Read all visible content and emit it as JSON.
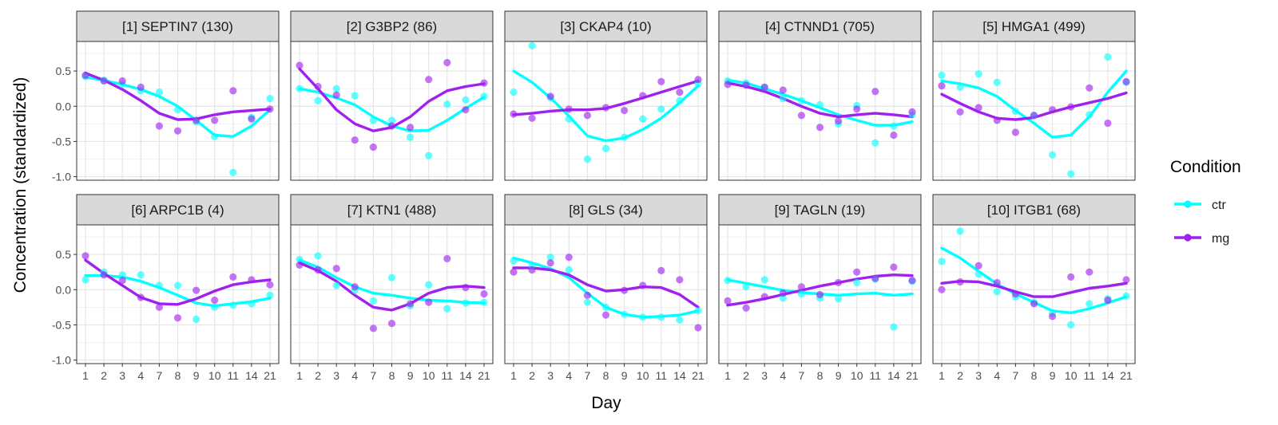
{
  "chart_data": {
    "type": "line",
    "xlabel": "Day",
    "ylabel": "Concentration (standardized)",
    "x_ticks": [
      "1",
      "2",
      "3",
      "4",
      "7",
      "8",
      "9",
      "10",
      "11",
      "14",
      "21"
    ],
    "y_ticks": [
      0.5,
      0.0,
      -0.5,
      -1.0
    ],
    "y_tick_labels": [
      "0.5",
      "0.0",
      "-0.5",
      "-1.0"
    ],
    "ylim": [
      -1.05,
      0.92
    ],
    "grid": true,
    "legend": {
      "title": "Condition",
      "position": "right",
      "entries": [
        {
          "name": "ctr",
          "color": "#00ffff"
        },
        {
          "name": "mg",
          "color": "#a020f0"
        }
      ]
    },
    "panels": [
      {
        "title": "[1] SEPTIN7 (130)",
        "series": [
          {
            "name": "ctr",
            "line": [
              0.41,
              0.37,
              0.31,
              0.24,
              0.14,
              0.0,
              -0.2,
              -0.41,
              -0.43,
              -0.28,
              -0.05
            ],
            "points": [
              0.42,
              0.37,
              0.31,
              0.22,
              0.2,
              -0.05,
              -0.22,
              -0.43,
              -0.94,
              -0.16,
              0.11
            ]
          },
          {
            "name": "mg",
            "line": [
              0.47,
              0.37,
              0.24,
              0.08,
              -0.1,
              -0.19,
              -0.18,
              -0.12,
              -0.08,
              -0.06,
              -0.04
            ],
            "points": [
              0.44,
              0.36,
              0.36,
              0.27,
              -0.28,
              -0.35,
              -0.2,
              -0.2,
              0.22,
              -0.18,
              -0.04
            ]
          }
        ]
      },
      {
        "title": "[2] G3BP2 (86)",
        "series": [
          {
            "name": "ctr",
            "line": [
              0.25,
              0.2,
              0.12,
              0.02,
              -0.15,
              -0.28,
              -0.35,
              -0.34,
              -0.2,
              -0.03,
              0.13
            ],
            "points": [
              0.25,
              0.08,
              0.25,
              0.15,
              -0.2,
              -0.2,
              -0.44,
              -0.7,
              0.03,
              0.09,
              0.14
            ]
          },
          {
            "name": "mg",
            "line": [
              0.53,
              0.25,
              -0.05,
              -0.25,
              -0.35,
              -0.3,
              -0.15,
              0.07,
              0.22,
              0.28,
              0.32
            ],
            "points": [
              0.58,
              0.28,
              0.16,
              -0.48,
              -0.58,
              -0.28,
              -0.3,
              0.38,
              0.62,
              -0.05,
              0.33
            ]
          }
        ]
      },
      {
        "title": "[3] CKAP4 (10)",
        "series": [
          {
            "name": "ctr",
            "line": [
              0.5,
              0.34,
              0.12,
              -0.14,
              -0.42,
              -0.49,
              -0.45,
              -0.33,
              -0.17,
              0.05,
              0.29
            ],
            "points": [
              0.2,
              0.86,
              0.12,
              -0.18,
              -0.75,
              -0.6,
              -0.44,
              -0.18,
              -0.04,
              0.08,
              0.32
            ]
          },
          {
            "name": "mg",
            "line": [
              -0.12,
              -0.1,
              -0.07,
              -0.05,
              -0.05,
              -0.03,
              0.04,
              0.12,
              0.2,
              0.28,
              0.36
            ],
            "points": [
              -0.11,
              -0.17,
              0.14,
              -0.04,
              -0.13,
              -0.02,
              -0.06,
              0.15,
              0.35,
              0.2,
              0.38
            ]
          }
        ]
      },
      {
        "title": "[4] CTNND1 (705)",
        "series": [
          {
            "name": "ctr",
            "line": [
              0.37,
              0.33,
              0.25,
              0.17,
              0.08,
              -0.02,
              -0.12,
              -0.2,
              -0.27,
              -0.27,
              -0.22
            ],
            "points": [
              0.36,
              0.33,
              0.27,
              0.11,
              0.08,
              0.02,
              -0.25,
              0.01,
              -0.52,
              -0.28,
              -0.12
            ]
          },
          {
            "name": "mg",
            "line": [
              0.33,
              0.28,
              0.21,
              0.11,
              0.0,
              -0.1,
              -0.15,
              -0.12,
              -0.1,
              -0.12,
              -0.15
            ],
            "points": [
              0.31,
              0.3,
              0.27,
              0.23,
              -0.13,
              -0.3,
              -0.21,
              -0.04,
              0.21,
              -0.41,
              -0.08
            ]
          }
        ]
      },
      {
        "title": "[5] HMGA1 (499)",
        "series": [
          {
            "name": "ctr",
            "line": [
              0.36,
              0.32,
              0.26,
              0.14,
              -0.06,
              -0.24,
              -0.44,
              -0.41,
              -0.15,
              0.2,
              0.5
            ],
            "points": [
              0.44,
              0.27,
              0.46,
              0.34,
              -0.07,
              -0.13,
              -0.69,
              -0.96,
              -0.12,
              0.7,
              0.34
            ]
          },
          {
            "name": "mg",
            "line": [
              0.17,
              0.04,
              -0.08,
              -0.17,
              -0.19,
              -0.16,
              -0.08,
              -0.01,
              0.05,
              0.11,
              0.19
            ],
            "points": [
              0.29,
              -0.08,
              -0.02,
              -0.2,
              -0.37,
              -0.13,
              -0.05,
              -0.01,
              0.26,
              -0.24,
              0.35
            ]
          }
        ]
      },
      {
        "title": "[6] ARPC1B (4)",
        "series": [
          {
            "name": "ctr",
            "line": [
              0.2,
              0.2,
              0.18,
              0.12,
              0.03,
              -0.08,
              -0.19,
              -0.23,
              -0.2,
              -0.17,
              -0.12
            ],
            "points": [
              0.14,
              0.25,
              0.21,
              0.21,
              0.06,
              0.06,
              -0.42,
              -0.25,
              -0.22,
              -0.2,
              -0.08
            ]
          },
          {
            "name": "mg",
            "line": [
              0.42,
              0.23,
              0.06,
              -0.11,
              -0.2,
              -0.21,
              -0.13,
              -0.02,
              0.07,
              0.11,
              0.14
            ],
            "points": [
              0.48,
              0.21,
              0.13,
              -0.11,
              -0.25,
              -0.4,
              -0.01,
              -0.15,
              0.18,
              0.14,
              0.07
            ]
          }
        ]
      },
      {
        "title": "[7] KTN1 (488)",
        "series": [
          {
            "name": "ctr",
            "line": [
              0.42,
              0.32,
              0.17,
              0.04,
              -0.05,
              -0.08,
              -0.12,
              -0.15,
              -0.16,
              -0.18,
              -0.19
            ],
            "points": [
              0.43,
              0.48,
              0.06,
              -0.01,
              -0.16,
              0.17,
              -0.23,
              0.07,
              -0.27,
              -0.19,
              -0.18
            ]
          },
          {
            "name": "mg",
            "line": [
              0.38,
              0.27,
              0.12,
              -0.08,
              -0.25,
              -0.29,
              -0.2,
              -0.05,
              0.03,
              0.05,
              0.03
            ],
            "points": [
              0.35,
              0.28,
              0.3,
              0.04,
              -0.55,
              -0.48,
              -0.2,
              -0.18,
              0.44,
              0.03,
              -0.06
            ]
          }
        ]
      },
      {
        "title": "[8] GLS (34)",
        "series": [
          {
            "name": "ctr",
            "line": [
              0.45,
              0.38,
              0.3,
              0.17,
              -0.05,
              -0.25,
              -0.35,
              -0.39,
              -0.38,
              -0.36,
              -0.3
            ],
            "points": [
              0.41,
              0.34,
              0.46,
              0.28,
              -0.18,
              -0.25,
              -0.35,
              -0.39,
              -0.39,
              -0.43,
              -0.3
            ]
          },
          {
            "name": "mg",
            "line": [
              0.31,
              0.31,
              0.28,
              0.21,
              0.07,
              -0.02,
              0.0,
              0.04,
              0.03,
              -0.07,
              -0.25
            ],
            "points": [
              0.25,
              0.28,
              0.38,
              0.46,
              -0.08,
              -0.36,
              -0.01,
              0.06,
              0.27,
              0.14,
              -0.54
            ]
          }
        ]
      },
      {
        "title": "[9] TAGLN (19)",
        "series": [
          {
            "name": "ctr",
            "line": [
              0.14,
              0.09,
              0.04,
              -0.01,
              -0.04,
              -0.06,
              -0.08,
              -0.06,
              -0.05,
              -0.08,
              -0.06
            ],
            "points": [
              0.13,
              0.04,
              0.14,
              -0.12,
              -0.06,
              -0.12,
              -0.13,
              0.1,
              0.15,
              -0.53,
              0.12
            ]
          },
          {
            "name": "mg",
            "line": [
              -0.22,
              -0.18,
              -0.13,
              -0.07,
              -0.01,
              0.05,
              0.1,
              0.15,
              0.19,
              0.21,
              0.2
            ],
            "points": [
              -0.16,
              -0.26,
              -0.1,
              -0.05,
              0.04,
              -0.07,
              0.1,
              0.25,
              0.16,
              0.32,
              0.13
            ]
          }
        ]
      },
      {
        "title": "[10] ITGB1 (68)",
        "series": [
          {
            "name": "ctr",
            "line": [
              0.59,
              0.45,
              0.26,
              0.08,
              -0.06,
              -0.18,
              -0.3,
              -0.33,
              -0.27,
              -0.19,
              -0.1
            ],
            "points": [
              0.4,
              0.83,
              0.22,
              -0.03,
              -0.1,
              -0.18,
              -0.33,
              -0.5,
              -0.2,
              -0.13,
              -0.09
            ]
          },
          {
            "name": "mg",
            "line": [
              0.09,
              0.12,
              0.11,
              0.05,
              -0.03,
              -0.1,
              -0.1,
              -0.04,
              0.02,
              0.05,
              0.09
            ],
            "points": [
              0.0,
              0.11,
              0.34,
              0.1,
              -0.06,
              -0.2,
              -0.38,
              0.18,
              0.25,
              -0.15,
              0.14
            ]
          }
        ]
      }
    ]
  }
}
